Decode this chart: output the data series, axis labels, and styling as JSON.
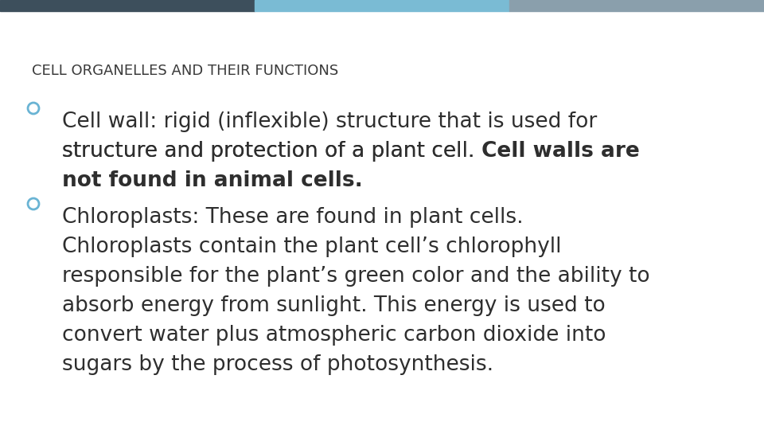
{
  "background_color": "#ffffff",
  "bar_colors": [
    "#3d4f5c",
    "#7abbd4",
    "#8a9fac"
  ],
  "title": "CELL ORGANELLES AND THEIR FUNCTIONS",
  "title_color": "#3a3a3a",
  "title_fontsize": 13,
  "bullet_color": "#6ab4d4",
  "text_fontsize": 19,
  "text_color": "#2e2e2e",
  "bullet1_line1": "Cell wall: rigid (inflexible) structure that is used for",
  "bullet1_line2_normal": "structure and protection of a plant cell. ",
  "bullet1_line2_bold": "Cell walls are",
  "bullet1_line3_bold": "not found in animal cells.",
  "bullet2_line1": "Chloroplasts: These are found in plant cells.",
  "bullet2_line2": "Chloroplasts contain the plant cell’s chlorophyll",
  "bullet2_line3": "responsible for the plant’s green color and the ability to",
  "bullet2_line4": "absorb energy from sunlight. This energy is used to",
  "bullet2_line5": "convert water plus atmospheric carbon dioxide into",
  "bullet2_line6": "sugars by the process of photosynthesis."
}
